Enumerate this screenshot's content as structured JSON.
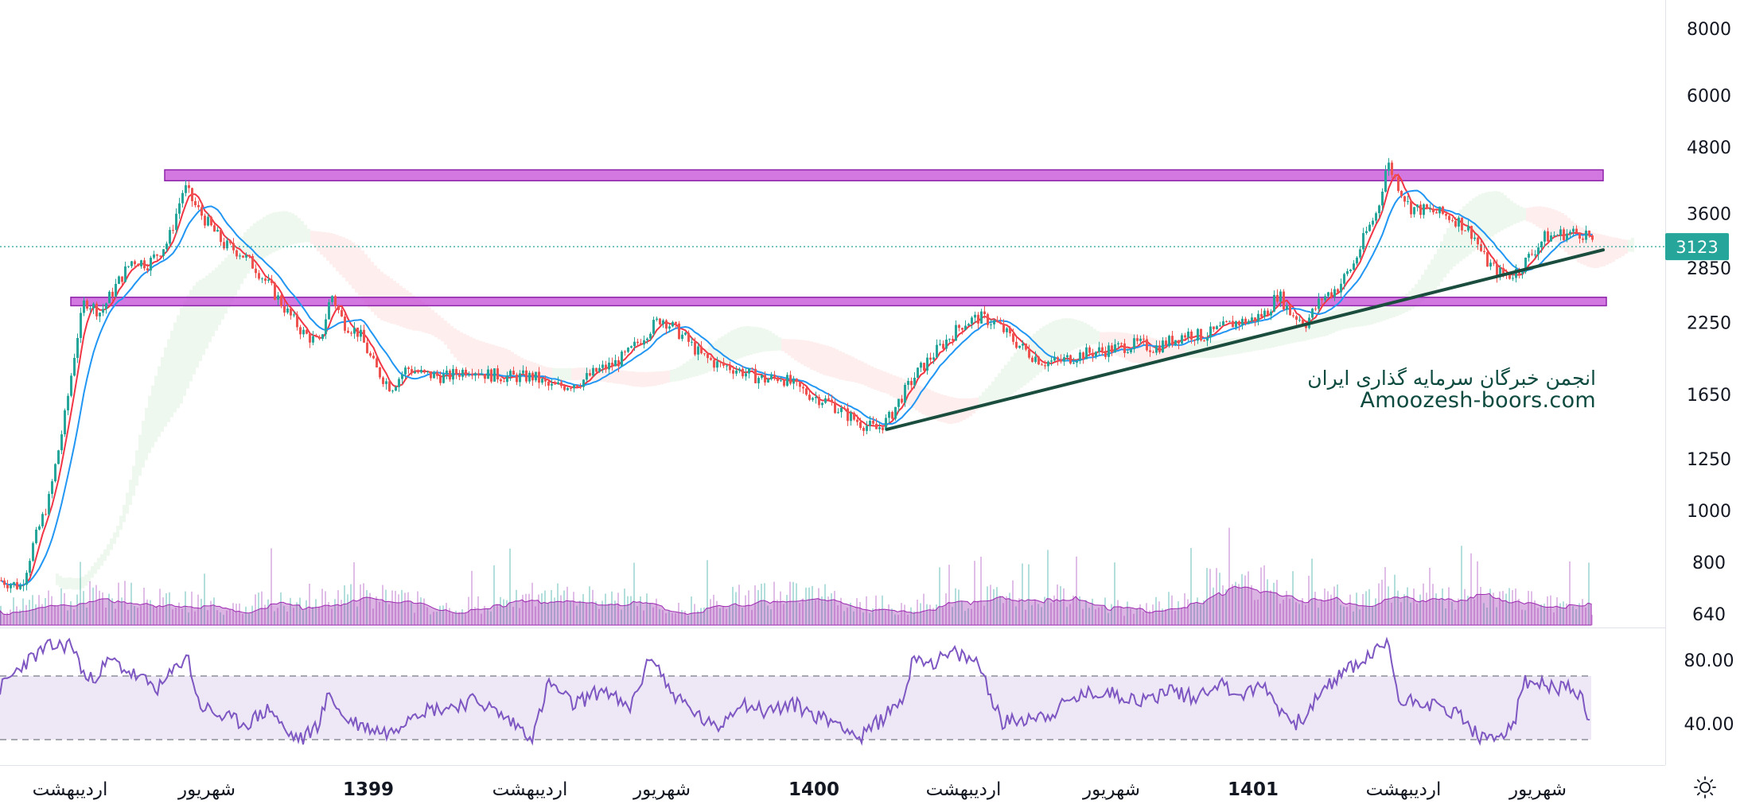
{
  "chart_data": {
    "type": "candlestick",
    "symbol": null,
    "current_price": 3123,
    "price_axis": {
      "scale": "log",
      "ticks": [
        8000,
        6000,
        4800,
        3600,
        2850,
        2250,
        1650,
        1250,
        1000,
        800,
        640
      ],
      "last_price_label": "3123",
      "last_price_color": "#26a69a"
    },
    "time_axis": {
      "labels": [
        "اردیبهشت",
        "شهریور",
        "1399",
        "اردیبهشت",
        "شهریور",
        "1400",
        "اردیبهشت",
        "شهریور",
        "1401",
        "اردیبهشت",
        "شهریور"
      ],
      "bold_labels": [
        "1399",
        "1400",
        "1401"
      ]
    },
    "price_series": {
      "description_points_index_price": [
        [
          0,
          740
        ],
        [
          25,
          720
        ],
        [
          40,
          860
        ],
        [
          60,
          1050
        ],
        [
          80,
          1500
        ],
        [
          95,
          2100
        ],
        [
          105,
          2480
        ],
        [
          125,
          2350
        ],
        [
          145,
          2650
        ],
        [
          165,
          2950
        ],
        [
          185,
          2900
        ],
        [
          210,
          3200
        ],
        [
          230,
          4050
        ],
        [
          245,
          3700
        ],
        [
          260,
          3450
        ],
        [
          280,
          3150
        ],
        [
          300,
          3050
        ],
        [
          320,
          2850
        ],
        [
          340,
          2600
        ],
        [
          360,
          2350
        ],
        [
          380,
          2150
        ],
        [
          400,
          2050
        ],
        [
          415,
          2550
        ],
        [
          430,
          2250
        ],
        [
          450,
          2150
        ],
        [
          470,
          1850
        ],
        [
          490,
          1700
        ],
        [
          510,
          1850
        ],
        [
          530,
          1800
        ],
        [
          560,
          1780
        ],
        [
          590,
          1850
        ],
        [
          610,
          1800
        ],
        [
          640,
          1780
        ],
        [
          670,
          1780
        ],
        [
          690,
          1700
        ],
        [
          710,
          1720
        ],
        [
          730,
          1750
        ],
        [
          750,
          1830
        ],
        [
          770,
          1880
        ],
        [
          790,
          1980
        ],
        [
          810,
          2150
        ],
        [
          830,
          2300
        ],
        [
          845,
          2200
        ],
        [
          860,
          2100
        ],
        [
          880,
          1950
        ],
        [
          900,
          1880
        ],
        [
          920,
          1850
        ],
        [
          940,
          1800
        ],
        [
          960,
          1760
        ],
        [
          980,
          1780
        ],
        [
          1000,
          1700
        ],
        [
          1020,
          1640
        ],
        [
          1040,
          1600
        ],
        [
          1060,
          1520
        ],
        [
          1080,
          1460
        ],
        [
          1100,
          1420
        ],
        [
          1115,
          1480
        ],
        [
          1130,
          1620
        ],
        [
          1150,
          1800
        ],
        [
          1170,
          1950
        ],
        [
          1190,
          2100
        ],
        [
          1210,
          2250
        ],
        [
          1230,
          2300
        ],
        [
          1250,
          2250
        ],
        [
          1270,
          2100
        ],
        [
          1290,
          1980
        ],
        [
          1310,
          1900
        ],
        [
          1330,
          1900
        ],
        [
          1350,
          1950
        ],
        [
          1370,
          1980
        ],
        [
          1390,
          2000
        ],
        [
          1410,
          2030
        ],
        [
          1430,
          2050
        ],
        [
          1450,
          2020
        ],
        [
          1470,
          2080
        ],
        [
          1490,
          2150
        ],
        [
          1510,
          2120
        ],
        [
          1530,
          2180
        ],
        [
          1550,
          2250
        ],
        [
          1570,
          2270
        ],
        [
          1590,
          2350
        ],
        [
          1605,
          2550
        ],
        [
          1620,
          2350
        ],
        [
          1640,
          2250
        ],
        [
          1660,
          2500
        ],
        [
          1680,
          2620
        ],
        [
          1700,
          2900
        ],
        [
          1715,
          3300
        ],
        [
          1730,
          3650
        ],
        [
          1742,
          4500
        ],
        [
          1755,
          4100
        ],
        [
          1770,
          3700
        ],
        [
          1790,
          3650
        ],
        [
          1810,
          3600
        ],
        [
          1830,
          3500
        ],
        [
          1850,
          3300
        ],
        [
          1865,
          2950
        ],
        [
          1880,
          2800
        ],
        [
          1895,
          2750
        ],
        [
          1910,
          2850
        ],
        [
          1925,
          3050
        ],
        [
          1940,
          3250
        ],
        [
          1960,
          3300
        ],
        [
          1980,
          3320
        ],
        [
          1995,
          3300
        ],
        [
          2000,
          3123
        ]
      ],
      "candle_colors": {
        "up": "#26a69a",
        "down": "#ef5350"
      }
    },
    "moving_averages": [
      {
        "color": "#f23645"
      },
      {
        "color": "#2196f3"
      }
    ],
    "ichimoku_cloud": {
      "bullish_color": "#4caf50",
      "bearish_color": "#f44336"
    },
    "support_resistance_zones": [
      {
        "price_from": 4150,
        "price_to": 4350,
        "color": "#c44bd6"
      },
      {
        "price_from": 2420,
        "price_to": 2510,
        "color": "#c44bd6"
      }
    ],
    "trendline": {
      "start": [
        1115,
        1420
      ],
      "end": [
        2015,
        3080
      ],
      "color": "#1b4d3e"
    },
    "volume": {
      "color": "#9c27b0"
    },
    "rsi": {
      "axis_ticks": [
        "80.00",
        "40.00"
      ],
      "overbought": 70,
      "oversold": 30,
      "line_color": "#7e57c2",
      "band_color": "#ede7f6",
      "approx_values": [
        [
          0,
          62
        ],
        [
          30,
          78
        ],
        [
          60,
          88
        ],
        [
          90,
          90
        ],
        [
          110,
          66
        ],
        [
          140,
          80
        ],
        [
          170,
          70
        ],
        [
          200,
          62
        ],
        [
          220,
          74
        ],
        [
          235,
          84
        ],
        [
          250,
          52
        ],
        [
          280,
          44
        ],
        [
          310,
          40
        ],
        [
          340,
          50
        ],
        [
          360,
          34
        ],
        [
          380,
          30
        ],
        [
          400,
          40
        ],
        [
          415,
          60
        ],
        [
          430,
          44
        ],
        [
          460,
          38
        ],
        [
          490,
          34
        ],
        [
          520,
          48
        ],
        [
          560,
          50
        ],
        [
          600,
          55
        ],
        [
          640,
          42
        ],
        [
          670,
          32
        ],
        [
          690,
          66
        ],
        [
          720,
          52
        ],
        [
          760,
          62
        ],
        [
          790,
          48
        ],
        [
          820,
          84
        ],
        [
          840,
          62
        ],
        [
          870,
          48
        ],
        [
          900,
          36
        ],
        [
          930,
          54
        ],
        [
          960,
          48
        ],
        [
          1000,
          52
        ],
        [
          1030,
          44
        ],
        [
          1060,
          40
        ],
        [
          1080,
          30
        ],
        [
          1110,
          44
        ],
        [
          1135,
          56
        ],
        [
          1150,
          84
        ],
        [
          1170,
          78
        ],
        [
          1200,
          84
        ],
        [
          1230,
          78
        ],
        [
          1260,
          40
        ],
        [
          1290,
          44
        ],
        [
          1320,
          46
        ],
        [
          1350,
          56
        ],
        [
          1380,
          60
        ],
        [
          1410,
          58
        ],
        [
          1440,
          54
        ],
        [
          1470,
          62
        ],
        [
          1500,
          56
        ],
        [
          1530,
          66
        ],
        [
          1560,
          58
        ],
        [
          1590,
          64
        ],
        [
          1610,
          48
        ],
        [
          1630,
          40
        ],
        [
          1660,
          58
        ],
        [
          1690,
          74
        ],
        [
          1710,
          78
        ],
        [
          1730,
          86
        ],
        [
          1745,
          90
        ],
        [
          1760,
          52
        ],
        [
          1780,
          56
        ],
        [
          1810,
          50
        ],
        [
          1835,
          46
        ],
        [
          1850,
          36
        ],
        [
          1870,
          28
        ],
        [
          1890,
          34
        ],
        [
          1905,
          44
        ],
        [
          1915,
          66
        ],
        [
          1940,
          64
        ],
        [
          1970,
          62
        ],
        [
          1985,
          60
        ],
        [
          1995,
          44
        ],
        [
          2000,
          38
        ]
      ]
    }
  },
  "watermark": {
    "persian_name": "انجمن خبرگان سرمایه گذاری ایران",
    "site": "Amoozesh-boors.com"
  },
  "toolbar": {
    "settings_icon": "settings-sun-icon"
  }
}
